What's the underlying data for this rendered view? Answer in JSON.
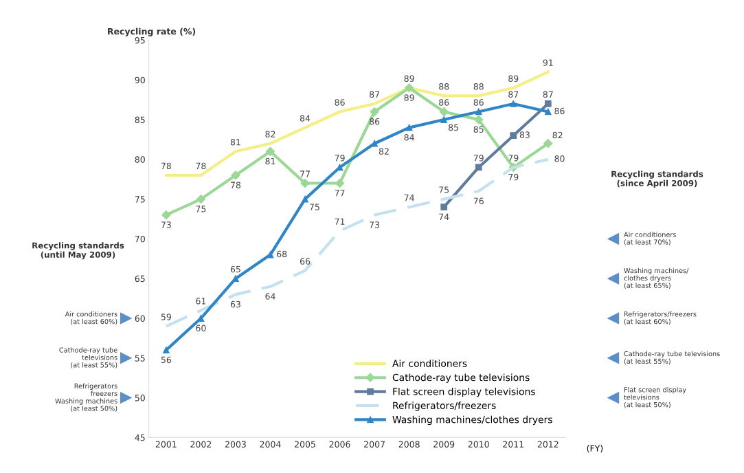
{
  "chart_data": {
    "type": "line",
    "ylabel": "Recycling rate (%)",
    "xlabel": "(FY)",
    "categories": [
      "2001",
      "2002",
      "2003",
      "2004",
      "2005",
      "2006",
      "2007",
      "2008",
      "2009",
      "2010",
      "2011",
      "2012"
    ],
    "ylim": [
      45,
      95
    ],
    "yticks": [
      45,
      50,
      55,
      60,
      65,
      70,
      75,
      80,
      85,
      90,
      95
    ],
    "grid": false,
    "legend": "bottom right",
    "data_labels": true,
    "series": [
      {
        "name": "Air conditioners",
        "color": "#f3ee85",
        "marker": "none",
        "line_style": "solid",
        "values": [
          78,
          78,
          81,
          82,
          84,
          86,
          87,
          89,
          88,
          88,
          89,
          91
        ]
      },
      {
        "name": "Cathode-ray tube televisions",
        "color": "#9bd896",
        "marker": "diamond",
        "line_style": "solid",
        "values": [
          73,
          75,
          78,
          81,
          77,
          77,
          86,
          89,
          86,
          85,
          79,
          82
        ]
      },
      {
        "name": "Flat screen display televisions",
        "color": "#5f7c9c",
        "marker": "square",
        "line_style": "solid",
        "values": [
          null,
          null,
          null,
          null,
          null,
          null,
          null,
          null,
          74,
          79,
          83,
          87
        ]
      },
      {
        "name": "Refrigerators/freezers",
        "color": "#c3e2ee",
        "marker": "none",
        "line_style": "dashed",
        "values": [
          59,
          61,
          63,
          64,
          66,
          71,
          73,
          74,
          75,
          76,
          79,
          80
        ]
      },
      {
        "name": "Washing machines/clothes dryers",
        "color": "#2e86c8",
        "marker": "triangle",
        "line_style": "solid",
        "values": [
          56,
          60,
          65,
          68,
          75,
          79,
          82,
          84,
          85,
          86,
          87,
          86
        ]
      }
    ],
    "annotations": [
      "Recycling standards\n(until May 2009)",
      "Air conditioners\n(at least 60%)",
      "Cathode-ray tube\ntelevisions\n(at least 55%)",
      "Refrigerators\nfreezers\nWashing machines\n(at least 50%)",
      "Recycling standards\n(since April 2009)",
      "Air conditioners\n(at least 70%)",
      "Washing machines/\nclothes dryers\n(at least 65%)",
      "Refrigerators/freezers\n(at least 60%)",
      "Cathode-ray tube televisions\n(at least 55%)",
      "Flat screen display\ntelevisions\n(at least 50%)"
    ]
  }
}
